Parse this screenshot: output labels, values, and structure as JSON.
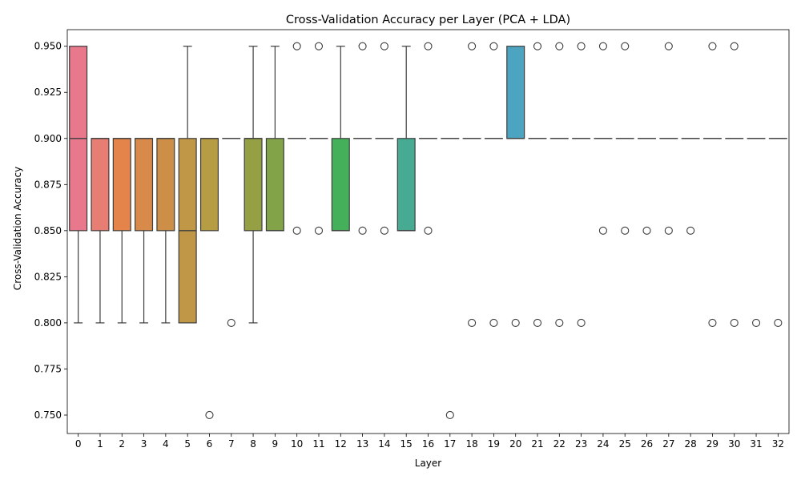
{
  "chart_data": {
    "type": "box",
    "title": "Cross-Validation Accuracy per Layer (PCA + LDA)",
    "xlabel": "Layer",
    "ylabel": "Cross-Validation Accuracy",
    "ylim": [
      0.74,
      0.959
    ],
    "yticks": [
      0.75,
      0.775,
      0.8,
      0.825,
      0.85,
      0.875,
      0.9,
      0.925,
      0.95
    ],
    "ytick_labels": [
      "0.750",
      "0.775",
      "0.800",
      "0.825",
      "0.850",
      "0.875",
      "0.900",
      "0.925",
      "0.950"
    ],
    "grid": false,
    "legend": false,
    "categories": [
      "0",
      "1",
      "2",
      "3",
      "4",
      "5",
      "6",
      "7",
      "8",
      "9",
      "10",
      "11",
      "12",
      "13",
      "14",
      "15",
      "16",
      "17",
      "18",
      "19",
      "20",
      "21",
      "22",
      "23",
      "24",
      "25",
      "26",
      "27",
      "28",
      "29",
      "30",
      "31",
      "32"
    ],
    "boxes": [
      {
        "layer": "0",
        "whislo": 0.8,
        "q1": 0.85,
        "med": 0.9,
        "q3": 0.95,
        "whishi": 0.95,
        "fliers": [],
        "color": "#e8788c"
      },
      {
        "layer": "1",
        "whislo": 0.8,
        "q1": 0.85,
        "med": 0.9,
        "q3": 0.9,
        "whishi": 0.9,
        "fliers": [],
        "color": "#e87d73"
      },
      {
        "layer": "2",
        "whislo": 0.8,
        "q1": 0.85,
        "med": 0.9,
        "q3": 0.9,
        "whishi": 0.9,
        "fliers": [],
        "color": "#e4834a"
      },
      {
        "layer": "3",
        "whislo": 0.8,
        "q1": 0.85,
        "med": 0.9,
        "q3": 0.9,
        "whishi": 0.9,
        "fliers": [],
        "color": "#d88a4a"
      },
      {
        "layer": "4",
        "whislo": 0.8,
        "q1": 0.85,
        "med": 0.9,
        "q3": 0.9,
        "whishi": 0.9,
        "fliers": [],
        "color": "#cd8f48"
      },
      {
        "layer": "5",
        "whislo": 0.8,
        "q1": 0.8,
        "med": 0.85,
        "q3": 0.9,
        "whishi": 0.95,
        "fliers": [],
        "color": "#bf9746"
      },
      {
        "layer": "6",
        "whislo": 0.85,
        "q1": 0.85,
        "med": 0.9,
        "q3": 0.9,
        "whishi": 0.9,
        "fliers": [
          0.75
        ],
        "color": "#b69c42"
      },
      {
        "layer": "7",
        "whislo": 0.9,
        "q1": 0.9,
        "med": 0.9,
        "q3": 0.9,
        "whishi": 0.9,
        "fliers": [
          0.8
        ],
        "color": "#a59f42"
      },
      {
        "layer": "8",
        "whislo": 0.8,
        "q1": 0.85,
        "med": 0.9,
        "q3": 0.9,
        "whishi": 0.95,
        "fliers": [],
        "color": "#959f44"
      },
      {
        "layer": "9",
        "whislo": 0.85,
        "q1": 0.85,
        "med": 0.85,
        "q3": 0.9,
        "whishi": 0.95,
        "fliers": [],
        "color": "#83a348"
      },
      {
        "layer": "10",
        "whislo": 0.9,
        "q1": 0.9,
        "med": 0.9,
        "q3": 0.9,
        "whishi": 0.9,
        "fliers": [
          0.85,
          0.95
        ],
        "color": "#6ea84c"
      },
      {
        "layer": "11",
        "whislo": 0.9,
        "q1": 0.9,
        "med": 0.9,
        "q3": 0.9,
        "whishi": 0.9,
        "fliers": [
          0.85,
          0.95
        ],
        "color": "#57ab52"
      },
      {
        "layer": "12",
        "whislo": 0.85,
        "q1": 0.85,
        "med": 0.85,
        "q3": 0.9,
        "whishi": 0.95,
        "fliers": [],
        "color": "#45b05a"
      },
      {
        "layer": "13",
        "whislo": 0.9,
        "q1": 0.9,
        "med": 0.9,
        "q3": 0.9,
        "whishi": 0.9,
        "fliers": [
          0.85,
          0.95
        ],
        "color": "#45ae78"
      },
      {
        "layer": "14",
        "whislo": 0.9,
        "q1": 0.9,
        "med": 0.9,
        "q3": 0.9,
        "whishi": 0.9,
        "fliers": [
          0.85,
          0.95
        ],
        "color": "#46ad88"
      },
      {
        "layer": "15",
        "whislo": 0.85,
        "q1": 0.85,
        "med": 0.85,
        "q3": 0.9,
        "whishi": 0.95,
        "fliers": [],
        "color": "#47ab93"
      },
      {
        "layer": "16",
        "whislo": 0.9,
        "q1": 0.9,
        "med": 0.9,
        "q3": 0.9,
        "whishi": 0.9,
        "fliers": [
          0.85,
          0.95
        ],
        "color": "#48aa9c"
      },
      {
        "layer": "17",
        "whislo": 0.9,
        "q1": 0.9,
        "med": 0.9,
        "q3": 0.9,
        "whishi": 0.9,
        "fliers": [
          0.75
        ],
        "color": "#49a9a4"
      },
      {
        "layer": "18",
        "whislo": 0.9,
        "q1": 0.9,
        "med": 0.9,
        "q3": 0.9,
        "whishi": 0.9,
        "fliers": [
          0.8,
          0.95
        ],
        "color": "#4aa8ac"
      },
      {
        "layer": "19",
        "whislo": 0.9,
        "q1": 0.9,
        "med": 0.9,
        "q3": 0.9,
        "whishi": 0.9,
        "fliers": [
          0.8,
          0.95
        ],
        "color": "#4ba6b5"
      },
      {
        "layer": "20",
        "whislo": 0.9,
        "q1": 0.9,
        "med": 0.9,
        "q3": 0.95,
        "whishi": 0.95,
        "fliers": [
          0.8
        ],
        "color": "#4ca4c0"
      },
      {
        "layer": "21",
        "whislo": 0.9,
        "q1": 0.9,
        "med": 0.9,
        "q3": 0.9,
        "whishi": 0.9,
        "fliers": [
          0.8,
          0.95
        ],
        "color": "#4ea2cc"
      },
      {
        "layer": "22",
        "whislo": 0.9,
        "q1": 0.9,
        "med": 0.9,
        "q3": 0.9,
        "whishi": 0.9,
        "fliers": [
          0.8,
          0.95
        ],
        "color": "#5a9ed8"
      },
      {
        "layer": "23",
        "whislo": 0.9,
        "q1": 0.9,
        "med": 0.9,
        "q3": 0.9,
        "whishi": 0.9,
        "fliers": [
          0.8,
          0.95
        ],
        "color": "#6e97e0"
      },
      {
        "layer": "24",
        "whislo": 0.9,
        "q1": 0.9,
        "med": 0.9,
        "q3": 0.9,
        "whishi": 0.9,
        "fliers": [
          0.85,
          0.95
        ],
        "color": "#8a8ee6"
      },
      {
        "layer": "25",
        "whislo": 0.9,
        "q1": 0.9,
        "med": 0.9,
        "q3": 0.9,
        "whishi": 0.9,
        "fliers": [
          0.85,
          0.95
        ],
        "color": "#a285e8"
      },
      {
        "layer": "26",
        "whislo": 0.9,
        "q1": 0.9,
        "med": 0.9,
        "q3": 0.9,
        "whishi": 0.9,
        "fliers": [
          0.85
        ],
        "color": "#b77be6"
      },
      {
        "layer": "27",
        "whislo": 0.9,
        "q1": 0.9,
        "med": 0.9,
        "q3": 0.9,
        "whishi": 0.9,
        "fliers": [
          0.85,
          0.95
        ],
        "color": "#c975e0"
      },
      {
        "layer": "28",
        "whislo": 0.9,
        "q1": 0.9,
        "med": 0.9,
        "q3": 0.9,
        "whishi": 0.9,
        "fliers": [
          0.85
        ],
        "color": "#da70d4"
      },
      {
        "layer": "29",
        "whislo": 0.9,
        "q1": 0.9,
        "med": 0.9,
        "q3": 0.9,
        "whishi": 0.9,
        "fliers": [
          0.8,
          0.95
        ],
        "color": "#e46fc4"
      },
      {
        "layer": "30",
        "whislo": 0.9,
        "q1": 0.9,
        "med": 0.9,
        "q3": 0.9,
        "whishi": 0.9,
        "fliers": [
          0.8,
          0.95
        ],
        "color": "#e670b2"
      },
      {
        "layer": "31",
        "whislo": 0.9,
        "q1": 0.9,
        "med": 0.9,
        "q3": 0.9,
        "whishi": 0.9,
        "fliers": [
          0.8
        ],
        "color": "#e673a2"
      },
      {
        "layer": "32",
        "whislo": 0.9,
        "q1": 0.9,
        "med": 0.9,
        "q3": 0.9,
        "whishi": 0.9,
        "fliers": [
          0.8
        ],
        "color": "#e67694"
      }
    ]
  }
}
